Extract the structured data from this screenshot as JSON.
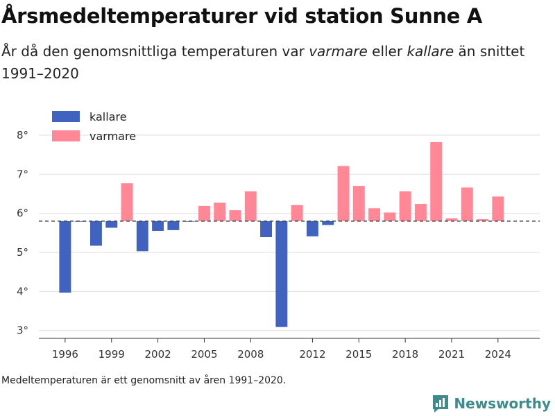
{
  "title": "Årsmedeltemperaturer vid station Sunne A",
  "subtitle": {
    "part1": "År då den genomsnittliga temperaturen var ",
    "warmer": "varmare",
    "part2": " eller ",
    "colder": "kallare",
    "part3": " än snittet 1991–2020"
  },
  "footnote": "Medeltemperaturen är ett genomsnitt av åren 1991–2020.",
  "brand": {
    "name": "Newsworthy",
    "icon": "newsworthy-logo-icon"
  },
  "colors": {
    "colder": "#3f63be",
    "warmer": "#ff8796",
    "grid": "#dddddd",
    "baseline": "#444444"
  },
  "chart_data": {
    "type": "bar",
    "baseline": 5.8,
    "ylim": [
      2.8,
      8.3
    ],
    "y_ticks": [
      3,
      4,
      5,
      6,
      7,
      8
    ],
    "y_tick_labels": [
      "3°",
      "4°",
      "5°",
      "6°",
      "7°",
      "8°"
    ],
    "x_range": [
      1994.3,
      2026.7
    ],
    "x_ticks": [
      1996,
      1999,
      2002,
      2005,
      2008,
      2012,
      2015,
      2018,
      2021,
      2024
    ],
    "x_tick_labels": [
      "1996",
      "1999",
      "2002",
      "2005",
      "2008",
      "2012",
      "2015",
      "2018",
      "2021",
      "2024"
    ],
    "legend": {
      "position": "top-left",
      "entries": [
        {
          "label": "kallare",
          "key": "colder"
        },
        {
          "label": "varmare",
          "key": "warmer"
        }
      ]
    },
    "grid": true,
    "years": [
      1996,
      1997,
      1998,
      1999,
      2000,
      2001,
      2002,
      2003,
      2004,
      2005,
      2006,
      2007,
      2008,
      2009,
      2010,
      2011,
      2012,
      2013,
      2014,
      2015,
      2016,
      2017,
      2018,
      2019,
      2020,
      2021,
      2022,
      2023,
      2024
    ],
    "values": [
      3.97,
      5.79,
      5.17,
      5.63,
      6.77,
      5.03,
      5.55,
      5.57,
      5.79,
      6.19,
      6.27,
      6.08,
      6.56,
      5.39,
      3.09,
      6.21,
      5.41,
      5.7,
      7.21,
      6.7,
      6.13,
      6.02,
      6.56,
      6.24,
      7.82,
      5.87,
      6.66,
      5.85,
      6.43
    ]
  }
}
